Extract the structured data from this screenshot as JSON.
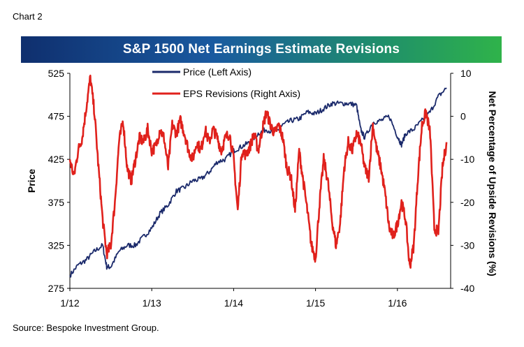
{
  "header": {
    "chart_label": "Chart 2"
  },
  "footer": {
    "source": "Source: Bespoke Investment Group."
  },
  "chart_data": {
    "type": "line",
    "title": "S&P 1500 Net Earnings Estimate Revisions",
    "ylabel_left": "Price",
    "ylabel_right": "Net Percentage of Upside Revisions (%)",
    "xlabel": "",
    "x_tick_labels": [
      "1/12",
      "1/13",
      "1/14",
      "1/15",
      "1/16"
    ],
    "x_range": [
      2012.0,
      2016.65
    ],
    "ylim_left": [
      275,
      525
    ],
    "ylim_right": [
      -40,
      10
    ],
    "y_ticks_left": [
      275,
      325,
      375,
      425,
      475,
      525
    ],
    "y_ticks_right": [
      -40,
      -30,
      -20,
      -10,
      0,
      10
    ],
    "legend_position": "top-center",
    "grid": false,
    "series": [
      {
        "name": "Price (Left Axis)",
        "axis": "left",
        "color": "#1b2a6b",
        "x": [
          2012.0,
          2012.1,
          2012.2,
          2012.3,
          2012.4,
          2012.45,
          2012.5,
          2012.6,
          2012.7,
          2012.8,
          2012.9,
          2013.0,
          2013.1,
          2013.2,
          2013.3,
          2013.4,
          2013.5,
          2013.6,
          2013.7,
          2013.8,
          2013.9,
          2014.0,
          2014.1,
          2014.2,
          2014.3,
          2014.4,
          2014.5,
          2014.6,
          2014.7,
          2014.8,
          2014.9,
          2015.0,
          2015.1,
          2015.2,
          2015.3,
          2015.4,
          2015.5,
          2015.55,
          2015.6,
          2015.7,
          2015.8,
          2015.9,
          2016.0,
          2016.05,
          2016.1,
          2016.2,
          2016.3,
          2016.4,
          2016.5,
          2016.6
        ],
        "values": [
          290,
          302,
          308,
          318,
          325,
          300,
          300,
          318,
          325,
          325,
          335,
          345,
          362,
          372,
          388,
          392,
          400,
          402,
          410,
          422,
          425,
          435,
          440,
          445,
          455,
          460,
          455,
          465,
          470,
          472,
          480,
          478,
          484,
          490,
          490,
          490,
          488,
          460,
          450,
          468,
          470,
          475,
          452,
          442,
          455,
          460,
          470,
          480,
          498,
          508
        ]
      },
      {
        "name": "EPS Revisions (Right Axis)",
        "axis": "right",
        "color": "#e0211c",
        "x": [
          2012.0,
          2012.05,
          2012.1,
          2012.15,
          2012.2,
          2012.25,
          2012.3,
          2012.35,
          2012.4,
          2012.45,
          2012.5,
          2012.55,
          2012.6,
          2012.65,
          2012.7,
          2012.75,
          2012.8,
          2012.85,
          2012.9,
          2012.95,
          2013.0,
          2013.05,
          2013.1,
          2013.15,
          2013.2,
          2013.25,
          2013.3,
          2013.35,
          2013.4,
          2013.45,
          2013.5,
          2013.55,
          2013.6,
          2013.65,
          2013.7,
          2013.75,
          2013.8,
          2013.85,
          2013.9,
          2013.95,
          2014.0,
          2014.05,
          2014.1,
          2014.15,
          2014.2,
          2014.25,
          2014.3,
          2014.35,
          2014.4,
          2014.45,
          2014.5,
          2014.55,
          2014.6,
          2014.65,
          2014.7,
          2014.75,
          2014.8,
          2014.85,
          2014.9,
          2014.95,
          2015.0,
          2015.05,
          2015.1,
          2015.15,
          2015.2,
          2015.25,
          2015.3,
          2015.35,
          2015.4,
          2015.45,
          2015.5,
          2015.55,
          2015.6,
          2015.65,
          2015.7,
          2015.75,
          2015.8,
          2015.85,
          2015.9,
          2015.95,
          2016.0,
          2016.05,
          2016.1,
          2016.15,
          2016.2,
          2016.25,
          2016.3,
          2016.35,
          2016.4,
          2016.45,
          2016.5,
          2016.55,
          2016.6
        ],
        "values": [
          -10,
          -14,
          -8,
          -5,
          2,
          9,
          1,
          -12,
          -24,
          -32,
          -30,
          -20,
          -6,
          -1,
          -12,
          -15,
          -10,
          -5,
          -6,
          -3,
          -8,
          -7,
          -3,
          -5,
          -12,
          -2,
          -4,
          -1,
          -4,
          -8,
          -10,
          -6,
          -8,
          -3,
          -6,
          -3,
          -5,
          -8,
          -5,
          -4,
          -10,
          -22,
          -8,
          -9,
          -7,
          -4,
          -8,
          -3,
          1,
          -2,
          -4,
          -2,
          -5,
          -12,
          -14,
          -22,
          -8,
          -15,
          -22,
          -30,
          -33,
          -20,
          -10,
          -15,
          -24,
          -30,
          -25,
          -12,
          -6,
          -8,
          -4,
          -6,
          -12,
          -14,
          -2,
          -8,
          -12,
          -18,
          -26,
          -28,
          -25,
          -20,
          -24,
          -35,
          -30,
          -14,
          -2,
          1,
          -4,
          -26,
          -27,
          -12,
          -6
        ]
      }
    ]
  }
}
